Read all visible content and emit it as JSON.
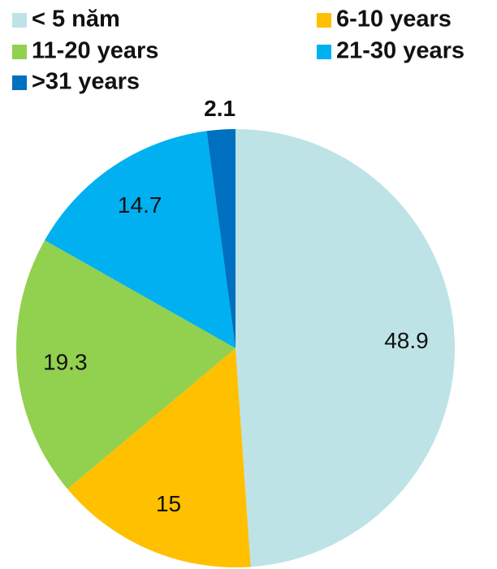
{
  "chart_data": {
    "type": "pie",
    "categories": [
      "< 5 năm",
      "6-10 years",
      "11-20 years",
      "21-30 years",
      ">31 years"
    ],
    "values": [
      48.9,
      15,
      19.3,
      14.7,
      2.1
    ],
    "colors": [
      "#bde3e6",
      "#ffc000",
      "#92d050",
      "#00b0f0",
      "#0070c0"
    ],
    "legend": "top"
  }
}
